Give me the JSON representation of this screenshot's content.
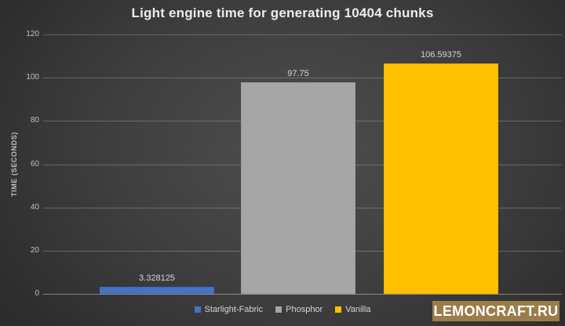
{
  "chart_data": {
    "type": "bar",
    "title": "Light engine time for generating 10404 chunks",
    "xlabel": "",
    "ylabel": "TIME (SECONDS)",
    "categories": [
      "Starlight-Fabric",
      "Phosphor",
      "Vanilla"
    ],
    "values": [
      3.328125,
      97.75,
      106.59375
    ],
    "value_labels": [
      "3.328125",
      "97.75",
      "106.59375"
    ],
    "bar_colors": [
      "#4472c4",
      "#a6a6a6",
      "#ffc000"
    ],
    "ylim": [
      0,
      120
    ],
    "yticks": [
      0,
      20,
      40,
      60,
      80,
      100,
      120
    ],
    "grid": true,
    "legend_position": "bottom",
    "background": "#3f3f3f",
    "text_color": "#d6d6d6"
  },
  "watermark": {
    "text": "LEMONCRAFT.RU",
    "bg_color": "#9b7c4b",
    "text_color": "#ffffff"
  }
}
